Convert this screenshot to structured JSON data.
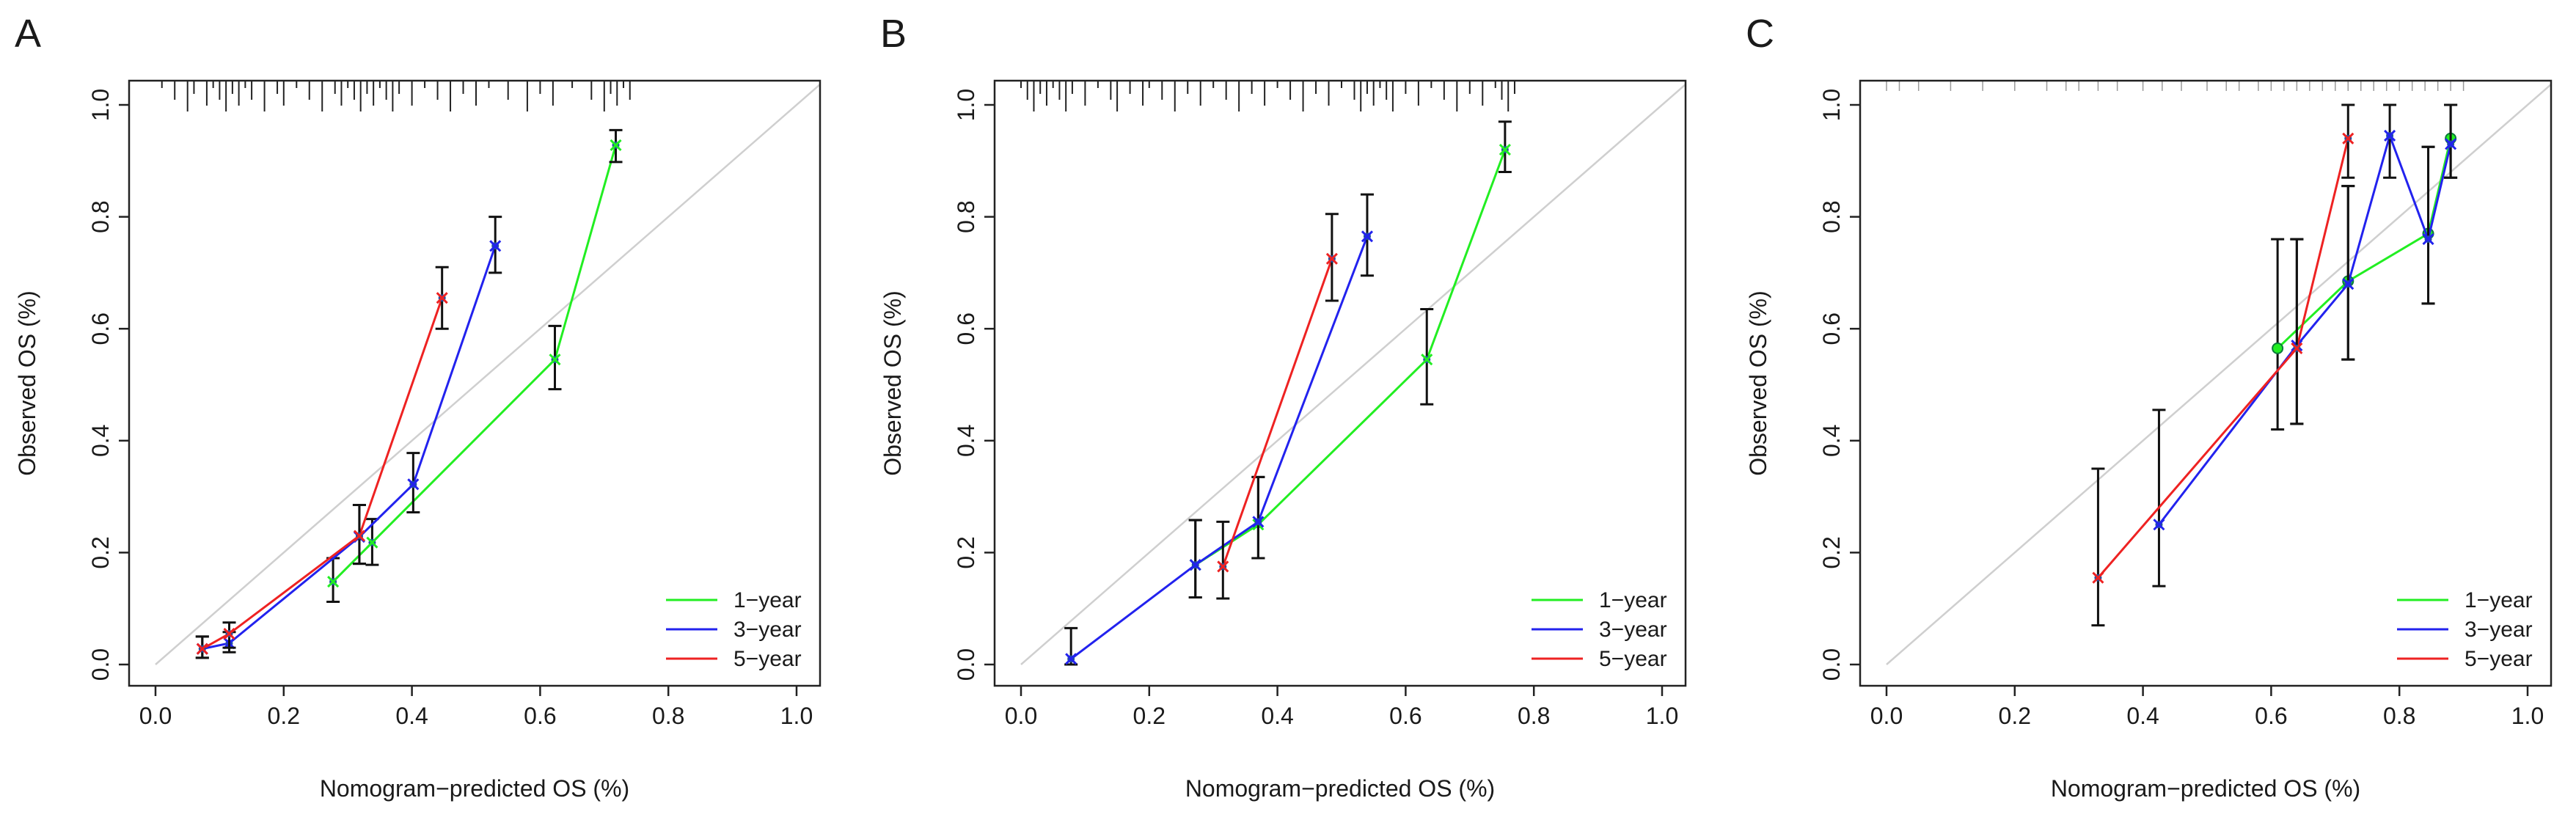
{
  "chart_data": [
    {
      "panel": "A",
      "type": "line",
      "xlabel": "Nomogram−predicted OS (%)",
      "ylabel": "Observed OS (%)",
      "xlim": [
        0,
        1.0
      ],
      "ylim": [
        0,
        1.0
      ],
      "xticks": [
        "0.0",
        "0.2",
        "0.4",
        "0.6",
        "0.8",
        "1.0"
      ],
      "yticks": [
        "0.0",
        "0.2",
        "0.4",
        "0.6",
        "0.8",
        "1.0"
      ],
      "reference_line": "diagonal",
      "legend": "bottom-right",
      "rug": [
        0.01,
        0.03,
        0.05,
        0.06,
        0.08,
        0.09,
        0.1,
        0.11,
        0.12,
        0.13,
        0.14,
        0.15,
        0.17,
        0.19,
        0.2,
        0.22,
        0.24,
        0.26,
        0.28,
        0.29,
        0.3,
        0.31,
        0.32,
        0.33,
        0.34,
        0.35,
        0.36,
        0.37,
        0.38,
        0.4,
        0.42,
        0.44,
        0.46,
        0.48,
        0.5,
        0.52,
        0.55,
        0.58,
        0.6,
        0.62,
        0.65,
        0.68,
        0.7,
        0.71,
        0.72,
        0.73,
        0.74
      ],
      "series": [
        {
          "name": "1−year",
          "color": "#22ee22",
          "marker": "x",
          "x": [
            0.277,
            0.338,
            0.623,
            0.718
          ],
          "y": [
            0.148,
            0.218,
            0.545,
            0.928
          ],
          "lower": [
            0.112,
            0.178,
            0.492,
            0.898
          ],
          "upper": [
            0.19,
            0.26,
            0.605,
            0.955
          ]
        },
        {
          "name": "3−year",
          "color": "#2222ee",
          "marker": "x",
          "x": [
            0.073,
            0.115,
            0.318,
            0.402,
            0.53
          ],
          "y": [
            0.028,
            0.038,
            0.228,
            0.322,
            0.748
          ],
          "lower": [
            0.012,
            0.022,
            0.18,
            0.272,
            0.7
          ],
          "upper": [
            0.05,
            0.058,
            0.285,
            0.378,
            0.8
          ]
        },
        {
          "name": "5−year",
          "color": "#ee2222",
          "marker": "x",
          "x": [
            0.073,
            0.115,
            0.318,
            0.447
          ],
          "y": [
            0.028,
            0.055,
            0.23,
            0.655
          ],
          "lower": [
            0.012,
            0.03,
            0.18,
            0.6
          ],
          "upper": [
            0.05,
            0.075,
            0.285,
            0.71
          ]
        }
      ]
    },
    {
      "panel": "B",
      "type": "line",
      "xlabel": "Nomogram−predicted OS (%)",
      "ylabel": "Observed OS (%)",
      "xlim": [
        0,
        1.0
      ],
      "ylim": [
        0,
        1.0
      ],
      "xticks": [
        "0.0",
        "0.2",
        "0.4",
        "0.6",
        "0.8",
        "1.0"
      ],
      "yticks": [
        "0.0",
        "0.2",
        "0.4",
        "0.6",
        "0.8",
        "1.0"
      ],
      "reference_line": "diagonal",
      "legend": "bottom-right",
      "rug": [
        0.0,
        0.01,
        0.02,
        0.03,
        0.04,
        0.05,
        0.06,
        0.07,
        0.08,
        0.1,
        0.12,
        0.14,
        0.15,
        0.17,
        0.19,
        0.2,
        0.22,
        0.24,
        0.26,
        0.28,
        0.3,
        0.32,
        0.34,
        0.36,
        0.38,
        0.4,
        0.42,
        0.44,
        0.46,
        0.48,
        0.5,
        0.52,
        0.53,
        0.54,
        0.55,
        0.56,
        0.57,
        0.58,
        0.6,
        0.62,
        0.64,
        0.66,
        0.68,
        0.7,
        0.72,
        0.74,
        0.75,
        0.76,
        0.77
      ],
      "series": [
        {
          "name": "1−year",
          "color": "#22ee22",
          "marker": "x",
          "x": [
            0.272,
            0.37,
            0.633,
            0.755
          ],
          "y": [
            0.178,
            0.25,
            0.545,
            0.92
          ],
          "lower": [
            0.12,
            0.19,
            0.465,
            0.88
          ],
          "upper": [
            0.258,
            0.335,
            0.635,
            0.97
          ]
        },
        {
          "name": "3−year",
          "color": "#2222ee",
          "marker": "x",
          "x": [
            0.078,
            0.272,
            0.37,
            0.54
          ],
          "y": [
            0.01,
            0.178,
            0.255,
            0.765
          ],
          "lower": [
            0.0,
            0.12,
            0.19,
            0.695
          ],
          "upper": [
            0.065,
            0.258,
            0.335,
            0.84
          ]
        },
        {
          "name": "5−year",
          "color": "#ee2222",
          "marker": "x",
          "x": [
            0.315,
            0.485
          ],
          "y": [
            0.175,
            0.725
          ],
          "lower": [
            0.118,
            0.65
          ],
          "upper": [
            0.255,
            0.805
          ]
        }
      ]
    },
    {
      "panel": "C",
      "type": "line",
      "xlabel": "Nomogram−predicted OS (%)",
      "ylabel": "Observed OS (%)",
      "xlim": [
        0,
        1.0
      ],
      "ylim": [
        0,
        1.0
      ],
      "xticks": [
        "0.0",
        "0.2",
        "0.4",
        "0.6",
        "0.8",
        "1.0"
      ],
      "yticks": [
        "0.0",
        "0.2",
        "0.4",
        "0.6",
        "0.8",
        "1.0"
      ],
      "reference_line": "diagonal",
      "legend": "bottom-right",
      "rug": [
        0.0,
        0.02,
        0.05,
        0.1,
        0.15,
        0.2,
        0.25,
        0.28,
        0.3,
        0.33,
        0.36,
        0.4,
        0.43,
        0.46,
        0.5,
        0.53,
        0.55,
        0.58,
        0.6,
        0.62,
        0.64,
        0.66,
        0.68,
        0.7,
        0.72,
        0.74,
        0.76,
        0.78,
        0.8,
        0.82,
        0.84,
        0.86,
        0.88,
        0.9
      ],
      "series": [
        {
          "name": "1−year",
          "color": "#22ee22",
          "marker": "o",
          "x": [
            0.61,
            0.72,
            0.845,
            0.88
          ],
          "y": [
            0.565,
            0.685,
            0.77,
            0.94
          ],
          "lower": [
            0.42,
            0.545,
            0.645,
            0.87
          ],
          "upper": [
            0.76,
            0.855,
            0.925,
            1.0
          ]
        },
        {
          "name": "3−year",
          "color": "#2222ee",
          "marker": "x",
          "x": [
            0.425,
            0.64,
            0.72,
            0.785,
            0.845,
            0.88
          ],
          "y": [
            0.25,
            0.57,
            0.68,
            0.945,
            0.76,
            0.93
          ],
          "lower": [
            0.14,
            0.43,
            0.545,
            0.87,
            0.645,
            0.87
          ],
          "upper": [
            0.455,
            0.76,
            0.855,
            1.0,
            0.925,
            1.0
          ]
        },
        {
          "name": "5−year",
          "color": "#ee2222",
          "marker": "x",
          "x": [
            0.33,
            0.64,
            0.72
          ],
          "y": [
            0.155,
            0.565,
            0.94
          ],
          "lower": [
            0.07,
            0.43,
            0.87
          ],
          "upper": [
            0.35,
            0.76,
            1.0
          ]
        }
      ]
    }
  ]
}
